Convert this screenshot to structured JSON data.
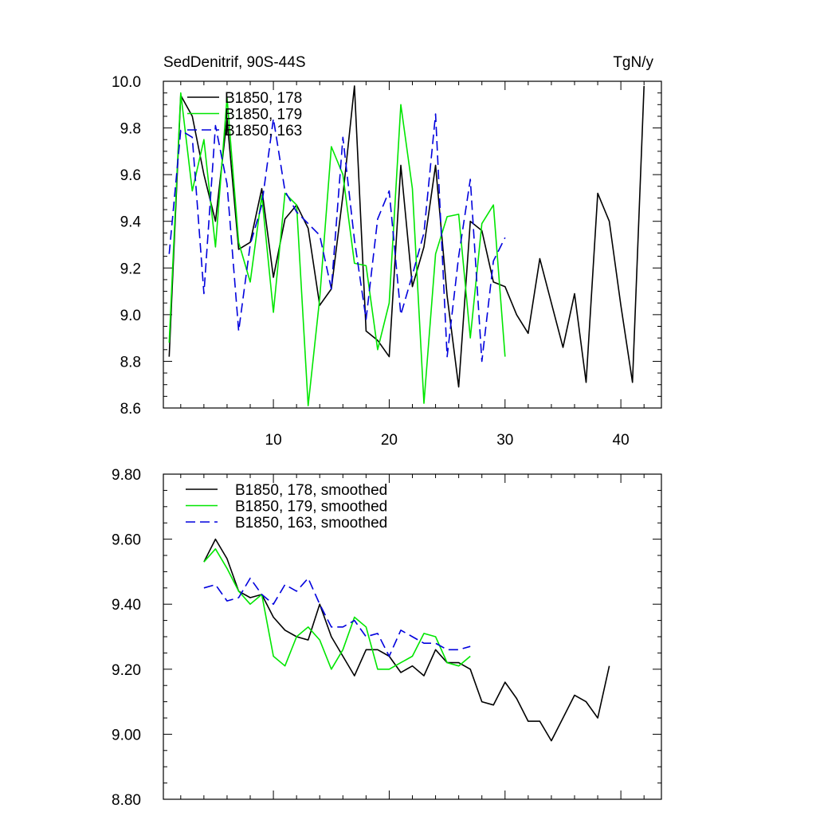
{
  "chart_data": [
    {
      "type": "line",
      "title": "SedDenitrif, 90S-44S",
      "units": "TgN/y",
      "xlim": [
        0.5,
        43.5
      ],
      "ylim": [
        8.6,
        10.0
      ],
      "xticks": [
        10,
        20,
        30,
        40
      ],
      "yticks": [
        8.6,
        8.8,
        9.0,
        9.2,
        9.4,
        9.6,
        9.8,
        10.0
      ],
      "ytick_labels": [
        "8.6",
        "8.8",
        "9.0",
        "9.2",
        "9.4",
        "9.6",
        "9.8",
        "10.0"
      ],
      "legend_position": "top-left",
      "series": [
        {
          "name": "B1850, 178",
          "color": "#000000",
          "dash": "solid",
          "x": [
            1,
            2,
            3,
            4,
            5,
            6,
            7,
            8,
            9,
            10,
            11,
            12,
            13,
            14,
            15,
            16,
            17,
            18,
            19,
            20,
            21,
            22,
            23,
            24,
            25,
            26,
            27,
            28,
            29,
            30,
            31,
            32,
            33,
            34,
            35,
            36,
            37,
            38,
            39,
            40,
            41,
            42
          ],
          "values": [
            8.82,
            9.94,
            9.85,
            9.6,
            9.4,
            9.84,
            9.28,
            9.31,
            9.54,
            9.16,
            9.41,
            9.47,
            9.37,
            9.04,
            9.11,
            9.51,
            9.98,
            8.93,
            8.89,
            8.82,
            9.64,
            9.12,
            9.29,
            9.64,
            9.08,
            8.69,
            9.4,
            9.36,
            9.14,
            9.12,
            9.0,
            8.92,
            9.24,
            9.05,
            8.86,
            9.09,
            8.71,
            9.52,
            9.4,
            9.04,
            8.71,
            9.98
          ]
        },
        {
          "name": "B1850, 179",
          "color": "#00e600",
          "dash": "solid",
          "x": [
            1,
            2,
            3,
            4,
            5,
            6,
            7,
            8,
            9,
            10,
            11,
            12,
            13,
            14,
            15,
            16,
            17,
            18,
            19,
            20,
            21,
            22,
            23,
            24,
            25,
            26,
            27,
            28,
            29,
            30
          ],
          "values": [
            8.88,
            9.95,
            9.53,
            9.75,
            9.29,
            9.93,
            9.31,
            9.14,
            9.51,
            9.01,
            9.52,
            9.47,
            8.61,
            9.07,
            9.72,
            9.6,
            9.22,
            9.21,
            8.85,
            9.05,
            9.9,
            9.54,
            8.62,
            9.26,
            9.42,
            9.43,
            8.9,
            9.39,
            9.47,
            8.82
          ]
        },
        {
          "name": "B1850, 163",
          "color": "#0000dd",
          "dash": "dashed",
          "x": [
            1,
            2,
            3,
            4,
            5,
            6,
            7,
            8,
            9,
            10,
            11,
            12,
            13,
            14,
            15,
            16,
            17,
            18,
            19,
            20,
            21,
            22,
            23,
            24,
            25,
            26,
            27,
            28,
            29,
            30
          ],
          "values": [
            9.26,
            9.79,
            9.76,
            9.09,
            9.81,
            9.56,
            8.93,
            9.3,
            9.47,
            9.84,
            9.53,
            9.44,
            9.39,
            9.34,
            9.11,
            9.76,
            9.32,
            8.98,
            9.41,
            9.53,
            9.0,
            9.17,
            9.35,
            9.86,
            8.82,
            9.25,
            9.58,
            8.8,
            9.23,
            9.33
          ]
        }
      ]
    },
    {
      "type": "line",
      "xlim": [
        0.5,
        43.5
      ],
      "ylim": [
        8.8,
        9.8
      ],
      "xticks": [
        10,
        20,
        30,
        40
      ],
      "yticks": [
        8.8,
        9.0,
        9.2,
        9.4,
        9.6,
        9.8
      ],
      "ytick_labels": [
        "8.80",
        "9.00",
        "9.20",
        "9.40",
        "9.60",
        "9.80"
      ],
      "legend_position": "top-left",
      "series": [
        {
          "name": "B1850, 178, smoothed",
          "color": "#000000",
          "dash": "solid",
          "x": [
            4,
            5,
            6,
            7,
            8,
            9,
            10,
            11,
            12,
            13,
            14,
            15,
            16,
            17,
            18,
            19,
            20,
            21,
            22,
            23,
            24,
            25,
            26,
            27,
            28,
            29,
            30,
            31,
            32,
            33,
            34,
            35,
            36,
            37,
            38,
            39
          ],
          "values": [
            9.53,
            9.6,
            9.54,
            9.44,
            9.42,
            9.43,
            9.36,
            9.32,
            9.3,
            9.29,
            9.4,
            9.3,
            9.24,
            9.18,
            9.26,
            9.26,
            9.24,
            9.19,
            9.21,
            9.18,
            9.26,
            9.22,
            9.22,
            9.2,
            9.1,
            9.09,
            9.16,
            9.11,
            9.04,
            9.04,
            8.98,
            9.05,
            9.12,
            9.1,
            9.05,
            9.21
          ]
        },
        {
          "name": "B1850, 179, smoothed",
          "color": "#00e600",
          "dash": "solid",
          "x": [
            4,
            5,
            6,
            7,
            8,
            9,
            10,
            11,
            12,
            13,
            14,
            15,
            16,
            17,
            18,
            19,
            20,
            21,
            22,
            23,
            24,
            25,
            26,
            27
          ],
          "values": [
            9.53,
            9.57,
            9.51,
            9.44,
            9.4,
            9.43,
            9.24,
            9.21,
            9.3,
            9.33,
            9.29,
            9.2,
            9.26,
            9.36,
            9.33,
            9.2,
            9.2,
            9.22,
            9.24,
            9.31,
            9.3,
            9.22,
            9.21,
            9.24
          ]
        },
        {
          "name": "B1850, 163, smoothed",
          "color": "#0000dd",
          "dash": "dashed",
          "x": [
            4,
            5,
            6,
            7,
            8,
            9,
            10,
            11,
            12,
            13,
            14,
            15,
            16,
            17,
            18,
            19,
            20,
            21,
            22,
            23,
            24,
            25,
            26,
            27
          ],
          "values": [
            9.45,
            9.46,
            9.41,
            9.42,
            9.48,
            9.43,
            9.4,
            9.46,
            9.44,
            9.48,
            9.4,
            9.33,
            9.33,
            9.35,
            9.3,
            9.31,
            9.24,
            9.32,
            9.3,
            9.28,
            9.28,
            9.26,
            9.26,
            9.27
          ]
        }
      ]
    }
  ]
}
